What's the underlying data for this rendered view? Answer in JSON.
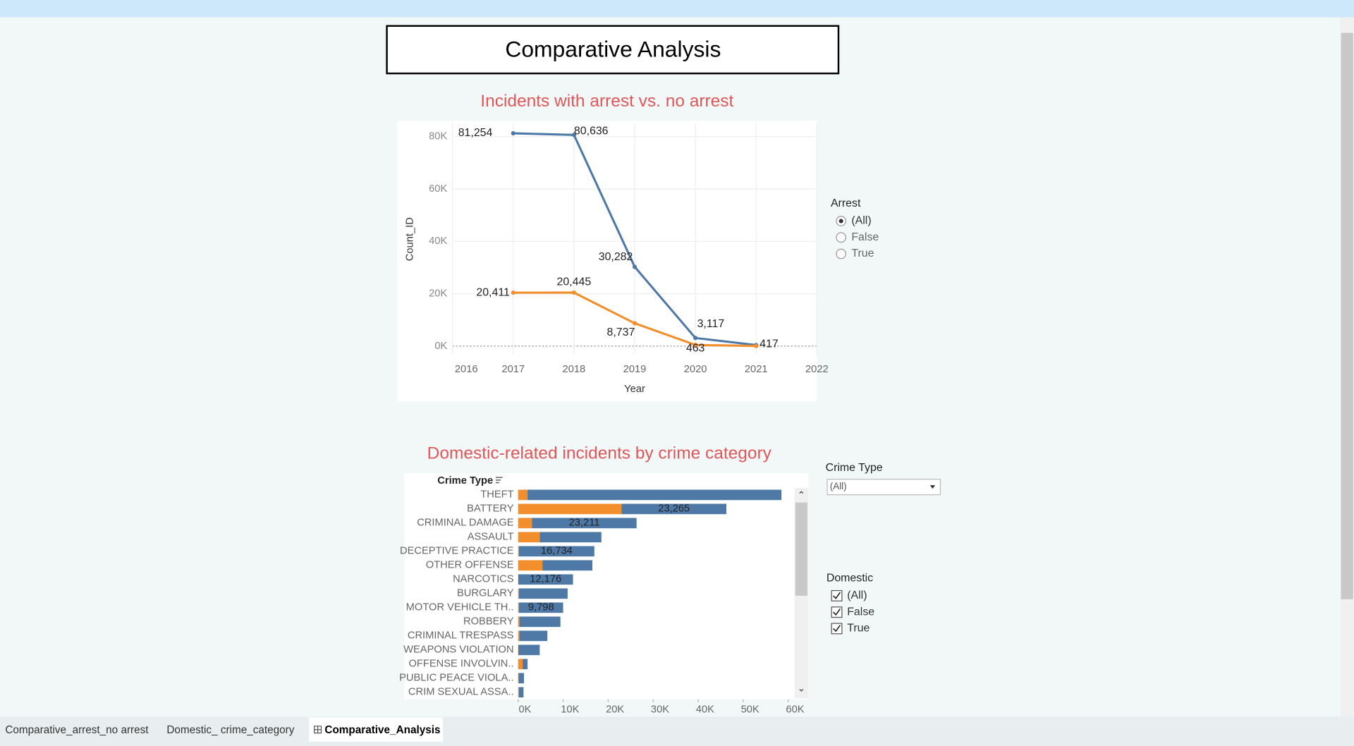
{
  "header": {
    "title": "Comparative Analysis"
  },
  "chart_data": [
    {
      "type": "line",
      "title": "Incidents with arrest vs. no arrest",
      "x_label": "Year",
      "y_label": "Count_ID",
      "x": [
        2017,
        2018,
        2019,
        2020,
        2021
      ],
      "series": [
        {
          "color": "#4e79a7",
          "values": [
            81254,
            80636,
            30282,
            3117,
            417
          ],
          "value_labels": [
            "81,254",
            "80,636",
            "30,282",
            "3,117",
            "417"
          ]
        },
        {
          "color": "#f28e2b",
          "values": [
            20411,
            20445,
            8737,
            463,
            60
          ],
          "value_labels": [
            "20,411",
            "20,445",
            "8,737",
            "463",
            null
          ]
        }
      ],
      "xlim": [
        2016,
        2022
      ],
      "xticks": [
        2016,
        2017,
        2018,
        2019,
        2020,
        2021,
        2022
      ],
      "ylim": [
        -3000,
        85000
      ],
      "yticks": [
        {
          "value": 0,
          "label": "0K"
        },
        {
          "value": 20000,
          "label": "20K"
        },
        {
          "value": 40000,
          "label": "40K"
        },
        {
          "value": 60000,
          "label": "60K"
        },
        {
          "value": 80000,
          "label": "80K"
        }
      ],
      "grid": true
    },
    {
      "type": "hbar_stacked",
      "title": "Domestic-related incidents  by crime category",
      "y_label": "Crime Type",
      "categories": [
        "THEFT",
        "BATTERY",
        "CRIMINAL DAMAGE",
        "ASSAULT",
        "DECEPTIVE PRACTICE",
        "OTHER OFFENSE",
        "NARCOTICS",
        "BURGLARY",
        "MOTOR VEHICLE TH..",
        "ROBBERY",
        "CRIMINAL TRESPASS",
        "WEAPONS VIOLATION",
        "OFFENSE INVOLVIN..",
        "PUBLIC PEACE VIOLA..",
        "CRIM SEXUAL ASSA.."
      ],
      "series": [
        {
          "color": "#f28e2b",
          "values": [
            2100,
            23000,
            3100,
            4800,
            200,
            5400,
            20,
            200,
            200,
            300,
            300,
            50,
            1000,
            100,
            200
          ]
        },
        {
          "color": "#4e79a7",
          "values": [
            56400,
            23265,
            23211,
            13700,
            16734,
            11100,
            12176,
            10800,
            9798,
            9100,
            6200,
            4750,
            1100,
            1200,
            1000
          ],
          "value_labels": [
            null,
            "23,265",
            "23,211",
            null,
            "16,734",
            null,
            "12,176",
            null,
            "9,798",
            null,
            null,
            null,
            null,
            null,
            null
          ]
        }
      ],
      "xlim": [
        0,
        61000
      ],
      "xticks": [
        {
          "value": 0,
          "label": "0K"
        },
        {
          "value": 10000,
          "label": "10K"
        },
        {
          "value": 20000,
          "label": "20K"
        },
        {
          "value": 30000,
          "label": "30K"
        },
        {
          "value": 40000,
          "label": "40K"
        },
        {
          "value": 50000,
          "label": "50K"
        },
        {
          "value": 60000,
          "label": "60K"
        }
      ],
      "grid": false
    }
  ],
  "filters": {
    "arrest": {
      "title": "Arrest",
      "options": [
        "(All)",
        "False",
        "True"
      ],
      "selected": 0
    },
    "crime_type": {
      "title": "Crime Type",
      "value": "(All)"
    },
    "domestic": {
      "title": "Domestic",
      "options": [
        "(All)",
        "False",
        "True"
      ],
      "checked": [
        true,
        true,
        true
      ]
    }
  },
  "tabs": {
    "items": [
      "Comparative_arrest_no arrest",
      "Domestic_ crime_category",
      "Comparative_Analysis"
    ],
    "active": 2
  }
}
